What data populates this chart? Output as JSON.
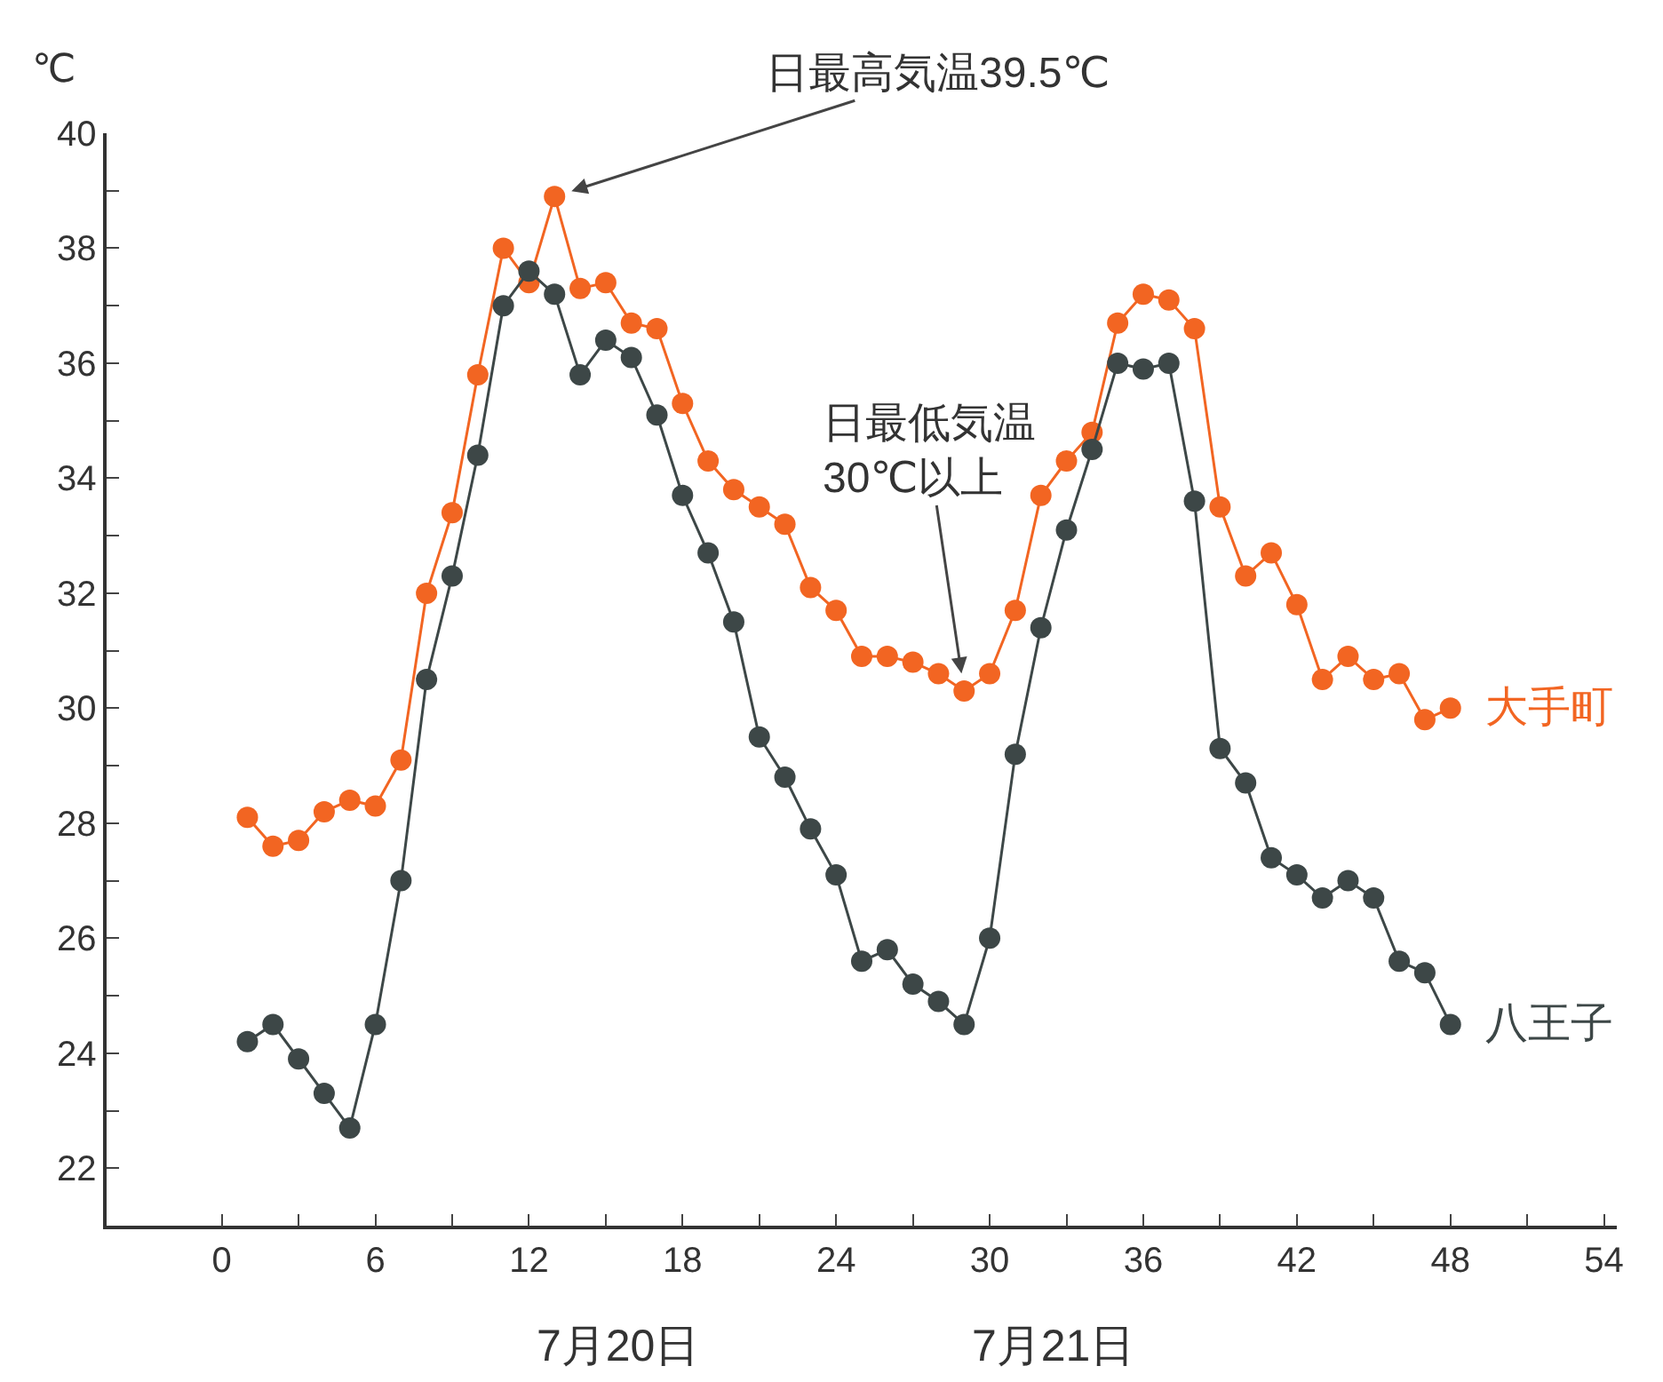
{
  "chart_data": {
    "type": "line",
    "ylabel": "℃",
    "x": [
      1,
      2,
      3,
      4,
      5,
      6,
      7,
      8,
      9,
      10,
      11,
      12,
      13,
      14,
      15,
      16,
      17,
      18,
      19,
      20,
      21,
      22,
      23,
      24,
      25,
      26,
      27,
      28,
      29,
      30,
      31,
      32,
      33,
      34,
      35,
      36,
      37,
      38,
      39,
      40,
      41,
      42,
      43,
      44,
      45,
      46,
      47,
      48
    ],
    "series": [
      {
        "name": "大手町",
        "color": "#f26522",
        "values": [
          28.1,
          27.6,
          27.7,
          28.2,
          28.4,
          28.3,
          29.1,
          32.0,
          33.4,
          35.8,
          38.0,
          37.4,
          38.9,
          37.3,
          37.4,
          36.7,
          36.6,
          35.3,
          34.3,
          33.8,
          33.5,
          33.2,
          32.1,
          31.7,
          30.9,
          30.9,
          30.8,
          30.6,
          30.3,
          30.6,
          31.7,
          33.7,
          34.3,
          34.8,
          36.7,
          37.2,
          37.1,
          36.6,
          33.5,
          32.3,
          32.7,
          31.8,
          30.5,
          30.9,
          30.5,
          30.6,
          29.8,
          30.0
        ]
      },
      {
        "name": "八王子",
        "color": "#3d4747",
        "values": [
          24.2,
          24.5,
          23.9,
          23.3,
          22.7,
          24.5,
          27.0,
          30.5,
          32.3,
          34.4,
          37.0,
          37.6,
          37.2,
          35.8,
          36.4,
          36.1,
          35.1,
          33.7,
          32.7,
          31.5,
          29.5,
          28.8,
          27.9,
          27.1,
          25.6,
          25.8,
          25.2,
          24.9,
          24.5,
          26.0,
          29.2,
          31.4,
          33.1,
          34.5,
          36.0,
          35.9,
          36.0,
          33.6,
          29.3,
          28.7,
          27.4,
          27.1,
          26.7,
          27.0,
          26.7,
          25.6,
          25.4,
          24.5
        ]
      }
    ],
    "xlim": [
      -4.5,
      54.5
    ],
    "ylim": [
      21,
      40
    ],
    "xticks": [
      0,
      {
        "value": 3,
        "label": null
      },
      6,
      {
        "value": 9,
        "label": null
      },
      12,
      {
        "value": 15,
        "label": null
      },
      18,
      {
        "value": 21,
        "label": null
      },
      24,
      {
        "value": 27,
        "label": null
      },
      30,
      {
        "value": 33,
        "label": null
      },
      36,
      {
        "value": 39,
        "label": null
      },
      42,
      {
        "value": 45,
        "label": null
      },
      48,
      {
        "value": 51,
        "label": null
      },
      54
    ],
    "yticks": [
      {
        "value": 21,
        "label": null
      },
      22,
      {
        "value": 23,
        "label": null
      },
      24,
      {
        "value": 25,
        "label": null
      },
      26,
      {
        "value": 27,
        "label": null
      },
      28,
      {
        "value": 29,
        "label": null
      },
      30,
      {
        "value": 31,
        "label": null
      },
      32,
      {
        "value": 33,
        "label": null
      },
      34,
      {
        "value": 35,
        "label": null
      },
      36,
      {
        "value": 37,
        "label": null
      },
      38,
      {
        "value": 39,
        "label": null
      },
      40
    ],
    "annotations": [
      {
        "text": "日最高気温39.5℃",
        "x": 13,
        "y": 38.9
      },
      {
        "text": "日最低気温\n30℃以上",
        "x": 29,
        "y": 30.3
      },
      "7月20日",
      "7月21日"
    ],
    "grid": false,
    "legend": false,
    "marker": "circle",
    "line_style": "solid"
  }
}
